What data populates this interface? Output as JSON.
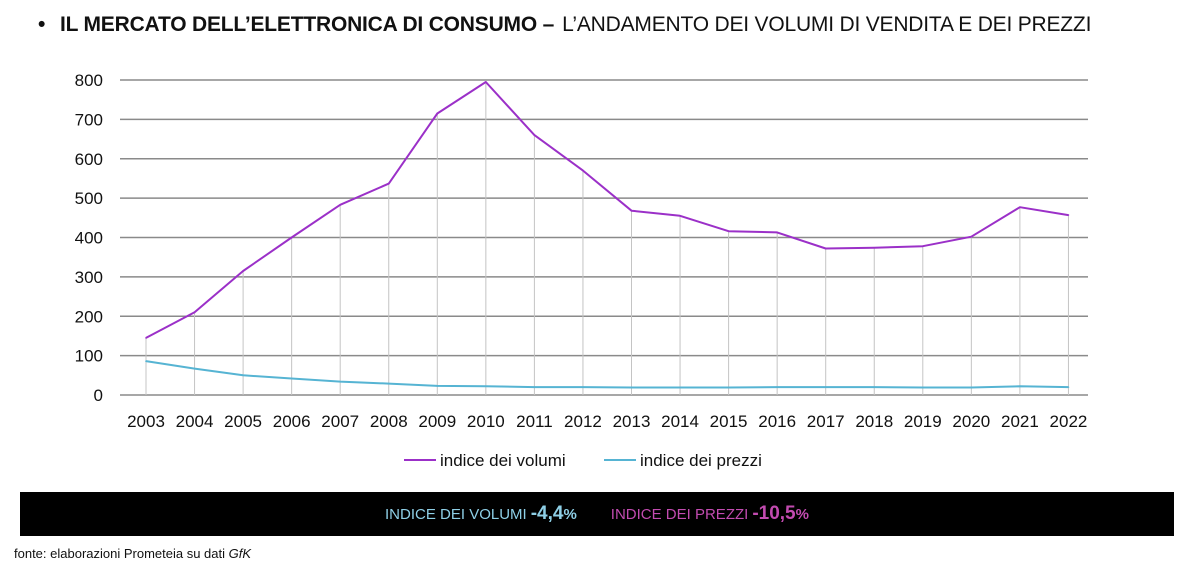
{
  "header": {
    "bullet": "•",
    "title_bold": "IL  MERCATO DELL’ELETTRONICA DI CONSUMO –",
    "title_regular": "L’ANDAMENTO DEI VOLUMI DI VENDITA E DEI PREZZI"
  },
  "chart_data": {
    "type": "line",
    "title": "",
    "xlabel": "",
    "ylabel": "",
    "ylim": [
      0,
      800
    ],
    "yticks": [
      0,
      100,
      200,
      300,
      400,
      500,
      600,
      700,
      800
    ],
    "grid": true,
    "legend_position": "bottom",
    "categories": [
      "2003",
      "2004",
      "2005",
      "2006",
      "2007",
      "2008",
      "2009",
      "2010",
      "2011",
      "2012",
      "2013",
      "2014",
      "2015",
      "2016",
      "2017",
      "2018",
      "2019",
      "2020",
      "2021",
      "2022"
    ],
    "series": [
      {
        "name": "indice dei volumi",
        "color": "#9b30c8",
        "values": [
          145,
          210,
          315,
          400,
          483,
          537,
          715,
          795,
          660,
          570,
          468,
          455,
          416,
          413,
          372,
          374,
          378,
          402,
          477,
          457
        ]
      },
      {
        "name": "indice dei prezzi",
        "color": "#56b4d3",
        "values": [
          86,
          67,
          50,
          42,
          34,
          29,
          23,
          22,
          20,
          20,
          19,
          19,
          19,
          20,
          20,
          20,
          19,
          19,
          22,
          20
        ]
      }
    ]
  },
  "summary": {
    "volumi_label": "INDICE DEI VOLUMI",
    "volumi_value": "-4,4",
    "volumi_unit": "%",
    "prezzi_label": "INDICE DEI PREZZI",
    "prezzi_value": "-10,5",
    "prezzi_unit": "%"
  },
  "source": {
    "prefix": "fonte: elaborazioni Prometeia su dati",
    "italic": "GfK"
  }
}
